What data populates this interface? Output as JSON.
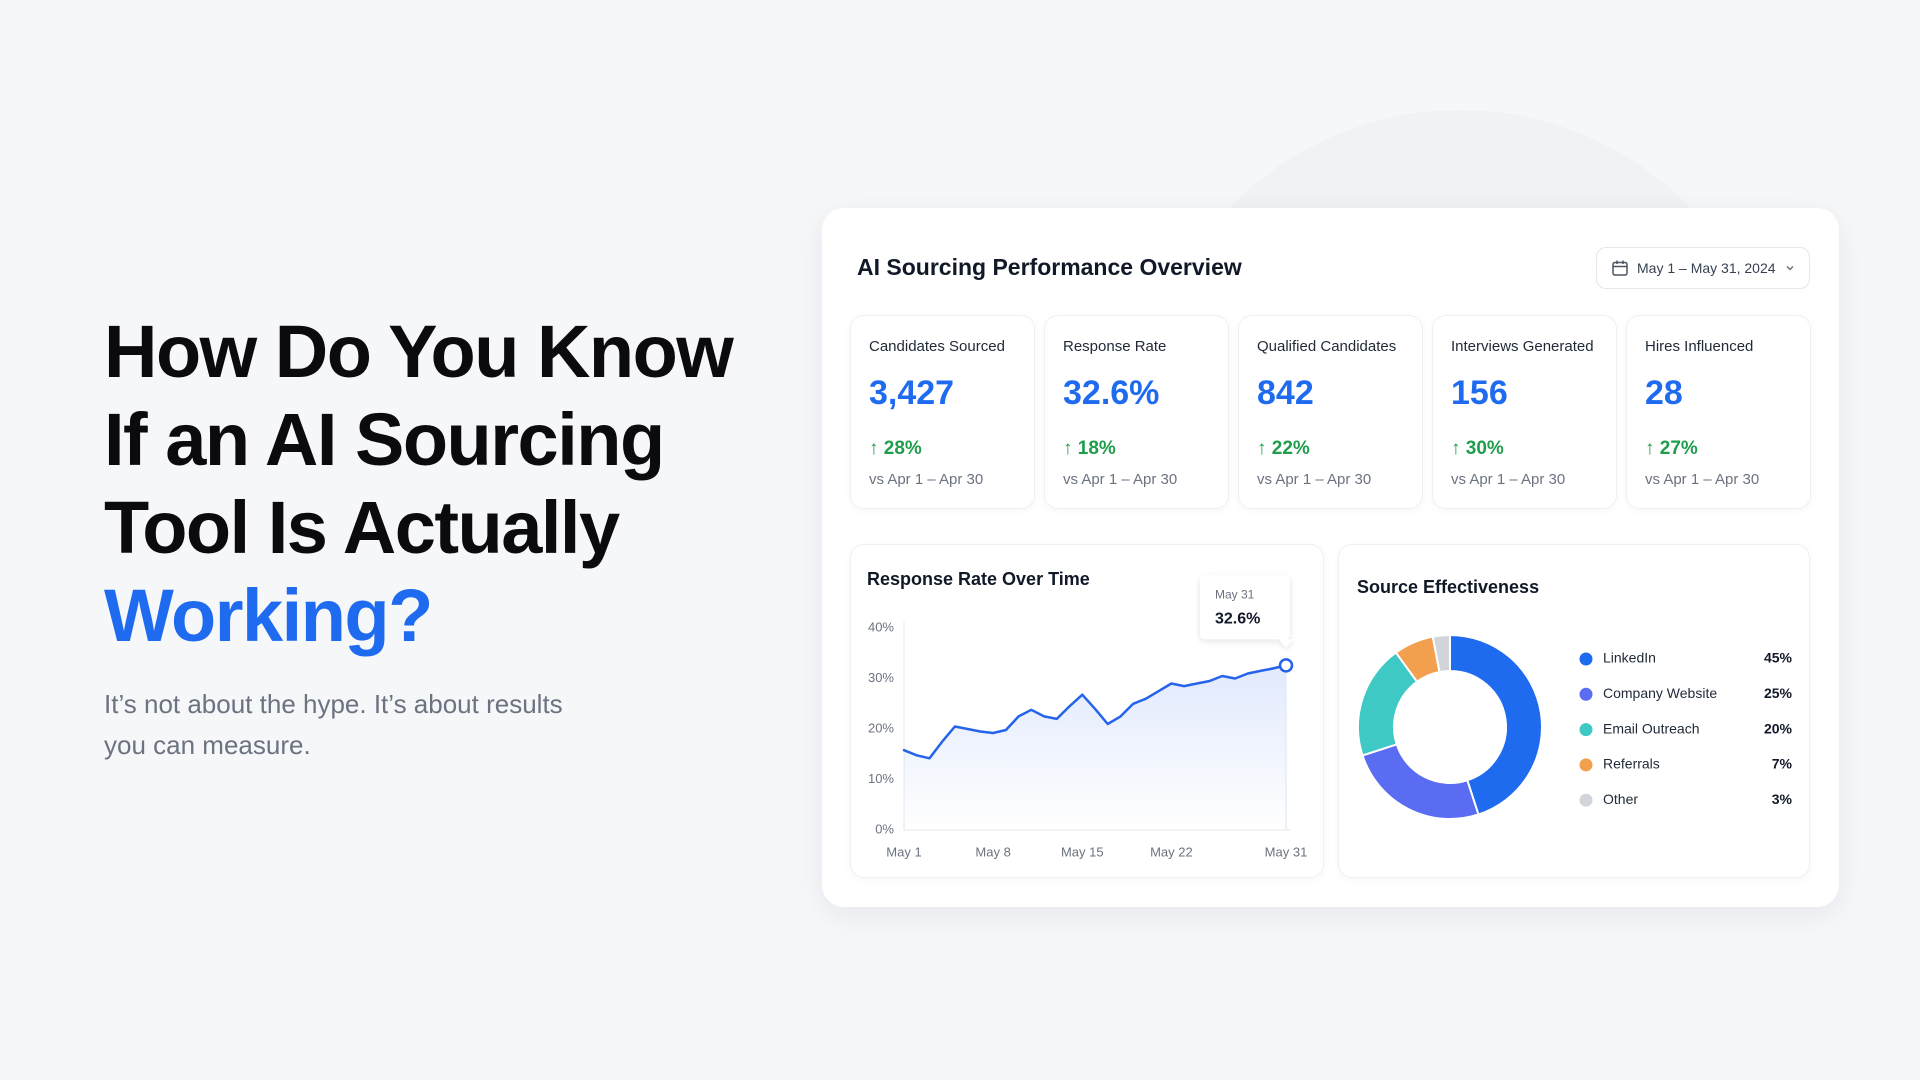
{
  "headline": {
    "lines": [
      "How Do You Know",
      "If an AI Sourcing",
      "Tool Is Actually"
    ],
    "highlight": "Working?"
  },
  "subtitle": {
    "lines": [
      "It’s not about the hype. It’s about results",
      "you can measure."
    ]
  },
  "dashboard": {
    "title": "AI Sourcing Performance Overview",
    "date_range": "May 1 – May 31, 2024",
    "kpis": [
      {
        "label": "Candidates Sourced",
        "value": "3,427",
        "change": "28%",
        "compare": "vs Apr 1 – Apr 30"
      },
      {
        "label": "Response Rate",
        "value": "32.6%",
        "change": "18%",
        "compare": "vs Apr 1 – Apr 30"
      },
      {
        "label": "Qualified Candidates",
        "value": "842",
        "change": "22%",
        "compare": "vs Apr 1 – Apr 30"
      },
      {
        "label": "Interviews Generated",
        "value": "156",
        "change": "30%",
        "compare": "vs Apr 1 – Apr 30"
      },
      {
        "label": "Hires Influenced",
        "value": "28",
        "change": "27%",
        "compare": "vs Apr 1 – Apr 30"
      }
    ]
  },
  "chart_data": [
    {
      "type": "line",
      "title": "Response Rate Over Time",
      "categories": [
        "May 1",
        null,
        null,
        null,
        null,
        null,
        null,
        "May 8",
        null,
        null,
        null,
        null,
        null,
        null,
        "May 15",
        null,
        null,
        null,
        null,
        null,
        null,
        "May 22",
        null,
        null,
        null,
        null,
        null,
        null,
        null,
        null,
        "May 31"
      ],
      "series": [
        {
          "name": "Response Rate",
          "color": "#2563eb",
          "values": [
            15.8,
            14.8,
            14.2,
            17.5,
            20.5,
            20.0,
            19.5,
            19.2,
            19.8,
            22.5,
            23.8,
            22.5,
            22.0,
            24.5,
            26.8,
            24.0,
            21.0,
            22.5,
            25.0,
            26.0,
            27.5,
            29.0,
            28.5,
            29.0,
            29.5,
            30.5,
            30.0,
            31.0,
            31.5,
            32.0,
            32.6
          ]
        }
      ],
      "ylim": [
        0,
        40
      ],
      "yticks": [
        {
          "value": 0,
          "label": "0%"
        },
        {
          "value": 10,
          "label": "10%"
        },
        {
          "value": 20,
          "label": "20%"
        },
        {
          "value": 30,
          "label": "30%"
        },
        {
          "value": 40,
          "label": "40%"
        }
      ],
      "grid": false,
      "annotation": {
        "x": "May 31",
        "text": "32.6%"
      }
    },
    {
      "type": "pie",
      "title": "Source Effectiveness",
      "categories": [
        "LinkedIn",
        "Company Website",
        "Email Outreach",
        "Referrals",
        "Other"
      ],
      "values": [
        45,
        25,
        20,
        7,
        3
      ],
      "value_labels": [
        "45%",
        "25%",
        "20%",
        "7%",
        "3%"
      ],
      "colors": [
        "#1f6bf0",
        "#5a6cf2",
        "#3ec9c4",
        "#f2a04e",
        "#d1d5db"
      ],
      "donut": true
    }
  ]
}
